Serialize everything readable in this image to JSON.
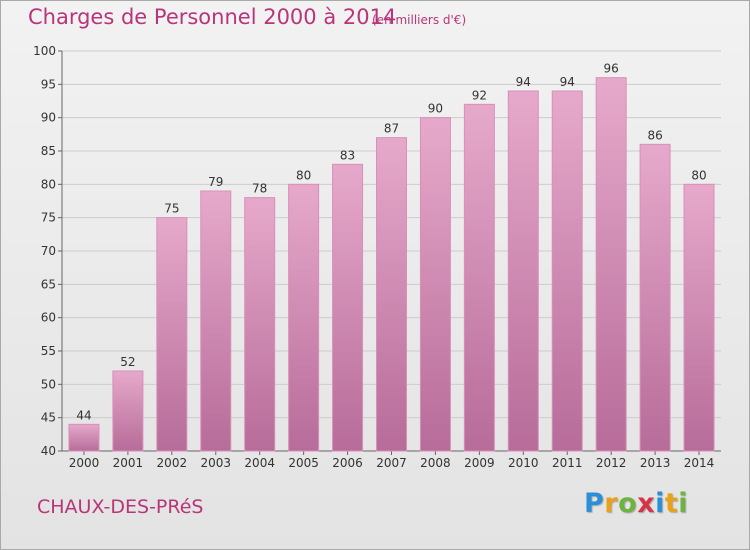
{
  "header": {
    "title": "Charges de Personnel 2000 à 2014",
    "subtitle": "(en milliers d'€)"
  },
  "footer": {
    "commune": "CHAUX-DES-PRéS",
    "logo_letters": [
      {
        "char": "P",
        "color": "#2a8fd6"
      },
      {
        "char": "r",
        "color": "#e8a21a"
      },
      {
        "char": "o",
        "color": "#6cb33f"
      },
      {
        "char": "x",
        "color": "#d9334a"
      },
      {
        "char": "i",
        "color": "#2a8fd6"
      },
      {
        "char": "t",
        "color": "#e8a21a"
      },
      {
        "char": "i",
        "color": "#6cb33f"
      }
    ]
  },
  "chart_data": {
    "type": "bar",
    "title": "Charges de Personnel 2000 à 2014",
    "subtitle": "(en milliers d'€)",
    "categories": [
      "2000",
      "2001",
      "2002",
      "2003",
      "2004",
      "2005",
      "2006",
      "2007",
      "2008",
      "2009",
      "2010",
      "2011",
      "2012",
      "2013",
      "2014"
    ],
    "values": [
      44,
      52,
      75,
      79,
      78,
      80,
      83,
      87,
      90,
      92,
      94,
      94,
      96,
      86,
      80
    ],
    "ylim": [
      40,
      100
    ],
    "yticks": [
      40,
      45,
      50,
      55,
      60,
      65,
      70,
      75,
      80,
      85,
      90,
      95,
      100
    ],
    "grid": true,
    "xlabel": "",
    "ylabel": "",
    "bar_color_top": "#e6a9cb",
    "bar_color_bottom": "#b76c99",
    "bar_edge_color": "#d98fb8",
    "grid_color": "#cccccc",
    "text_color": "#b8357a"
  }
}
